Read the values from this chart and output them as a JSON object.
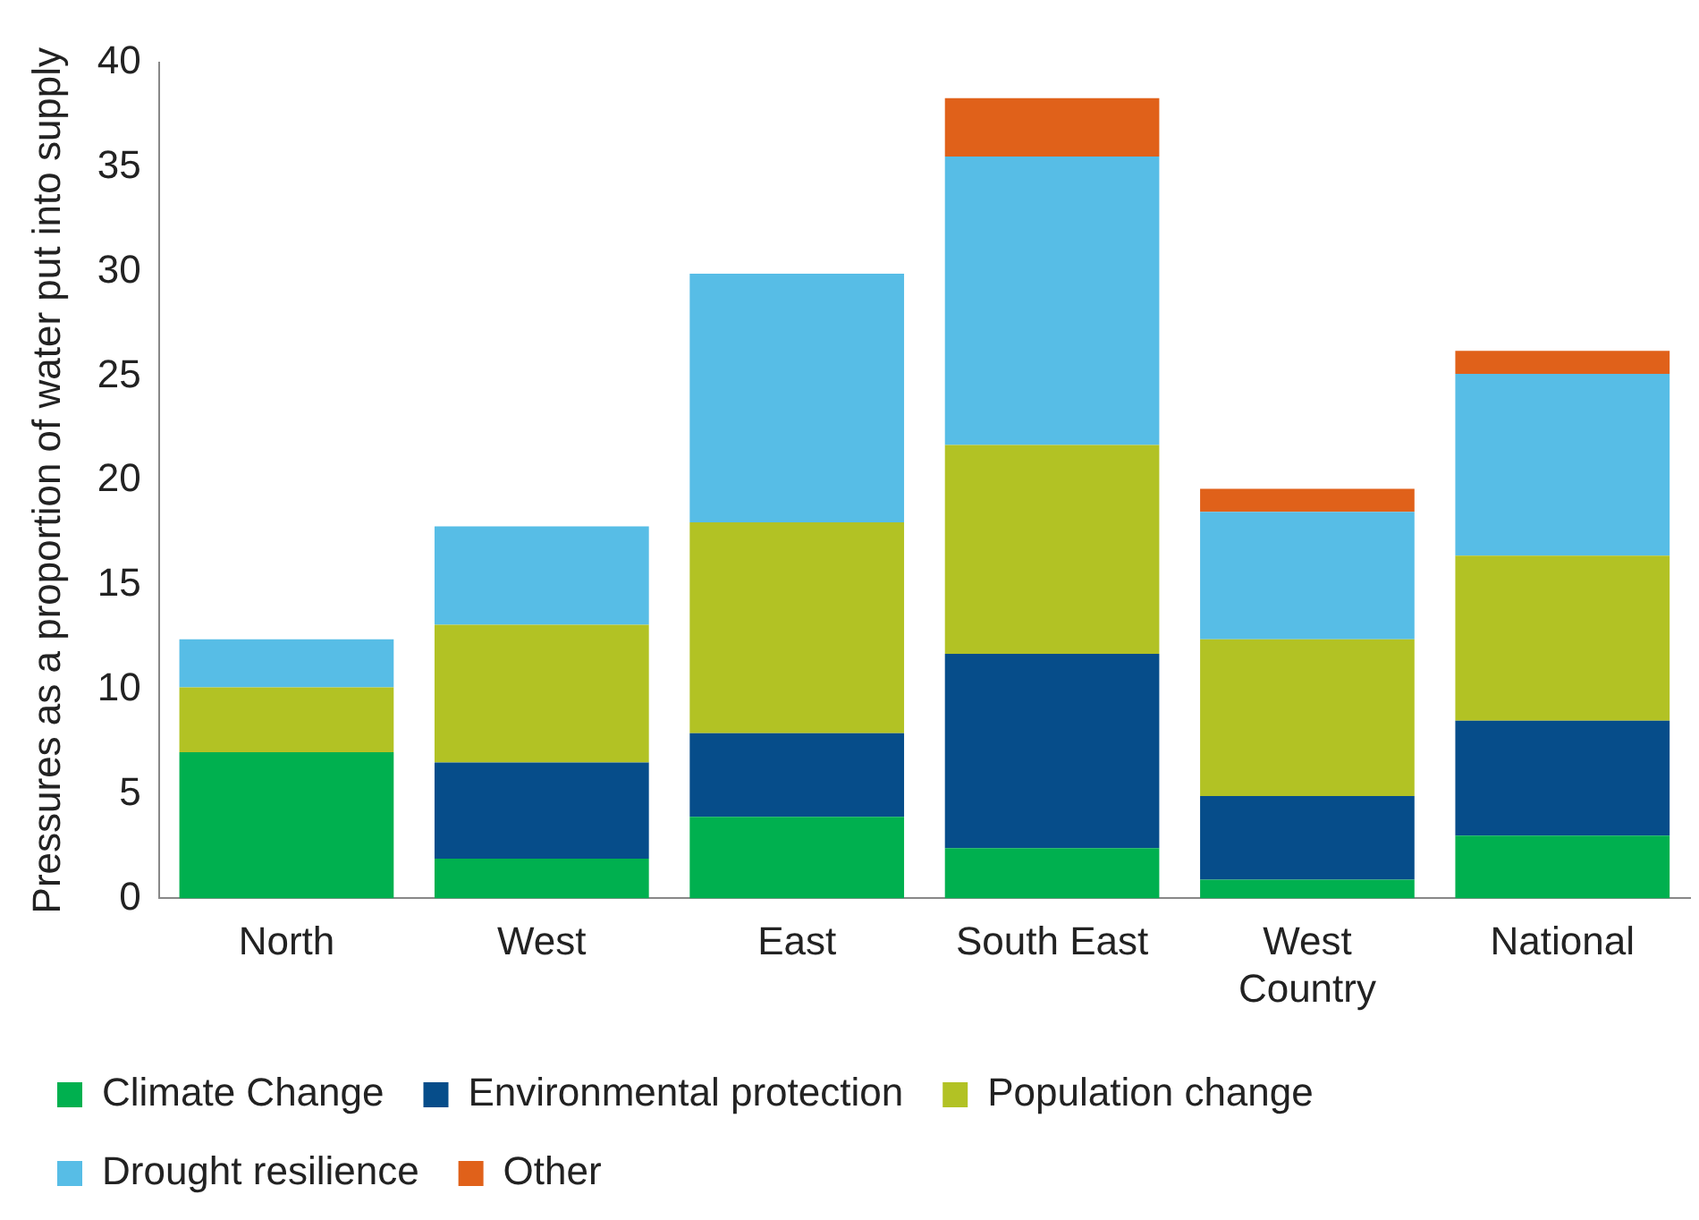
{
  "chart_data": {
    "type": "bar",
    "stacked": true,
    "ylabel": "Pressures as a proportion of water put into supply",
    "categories": [
      "North",
      "West",
      "East",
      "South East",
      "West Country",
      "National"
    ],
    "series": [
      {
        "name": "Climate Change",
        "color": "#00b04f",
        "values": [
          7.0,
          1.9,
          3.9,
          2.4,
          0.9,
          3.0
        ]
      },
      {
        "name": "Environmental protection",
        "color": "#064d8a",
        "values": [
          null,
          4.6,
          4.0,
          9.3,
          4.0,
          5.5
        ]
      },
      {
        "name": "Population change",
        "color": "#b2c224",
        "values": [
          3.1,
          6.6,
          10.1,
          10.0,
          7.5,
          7.9
        ]
      },
      {
        "name": "Drought resilience",
        "color": "#57bde6",
        "values": [
          2.3,
          4.7,
          11.9,
          13.8,
          6.1,
          8.7
        ]
      },
      {
        "name": "Other",
        "color": "#e0611a",
        "values": [
          null,
          null,
          null,
          2.8,
          1.1,
          1.1
        ]
      }
    ],
    "ylim": [
      0,
      40
    ],
    "yticks": [
      0,
      5,
      10,
      15,
      20,
      25,
      30,
      35,
      40
    ],
    "grid": false,
    "legend": "bottom"
  }
}
